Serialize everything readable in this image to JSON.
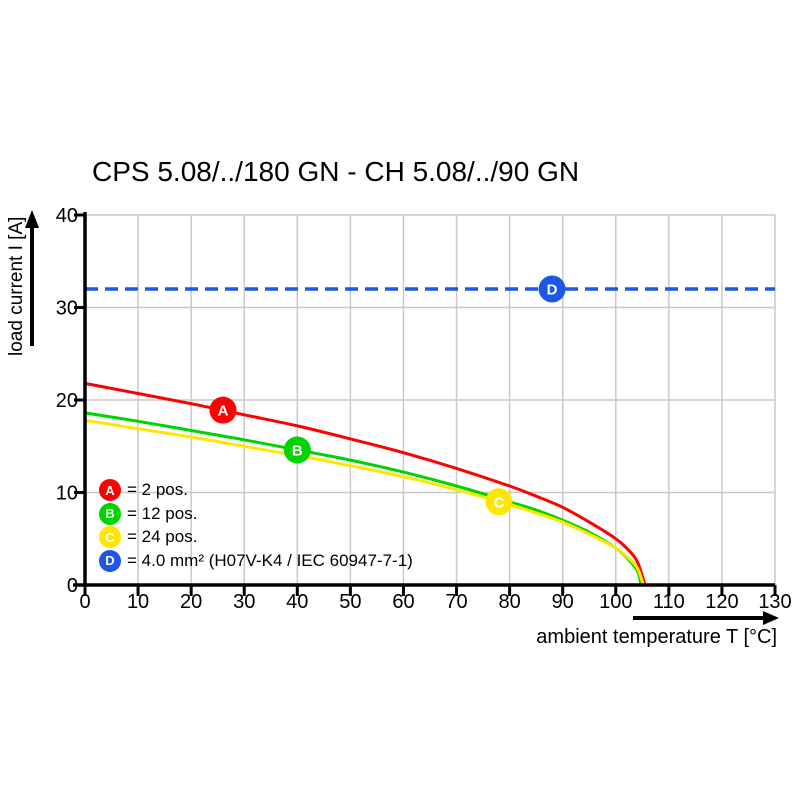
{
  "chart_data": {
    "type": "line",
    "title": "CPS 5.08/../180 GN - CH 5.08/../90 GN",
    "xlabel": "ambient temperature T [°C]",
    "ylabel": "load current I [A]",
    "xlim": [
      0,
      130
    ],
    "ylim": [
      0,
      40
    ],
    "x_ticks": [
      0,
      10,
      20,
      30,
      40,
      50,
      60,
      70,
      80,
      90,
      100,
      110,
      120,
      130
    ],
    "y_ticks": [
      0,
      10,
      20,
      30,
      40
    ],
    "grid": true,
    "colors": {
      "grid": "#c9c9c9",
      "axis": "#000000"
    },
    "series": [
      {
        "key": "A",
        "name": "A = 2 pos.",
        "color": "#ff0000",
        "style": "solid",
        "points": [
          [
            0,
            21.8
          ],
          [
            10,
            20.7
          ],
          [
            20,
            19.6
          ],
          [
            30,
            18.4
          ],
          [
            40,
            17.2
          ],
          [
            50,
            15.8
          ],
          [
            60,
            14.3
          ],
          [
            70,
            12.6
          ],
          [
            80,
            10.7
          ],
          [
            85,
            9.6
          ],
          [
            90,
            8.4
          ],
          [
            95,
            6.8
          ],
          [
            100,
            5.0
          ],
          [
            102,
            4.0
          ],
          [
            104,
            2.6
          ],
          [
            105.5,
            0
          ]
        ]
      },
      {
        "key": "B",
        "name": "B = 12 pos.",
        "color": "#00d400",
        "style": "solid",
        "points": [
          [
            0,
            18.6
          ],
          [
            10,
            17.7
          ],
          [
            20,
            16.7
          ],
          [
            30,
            15.7
          ],
          [
            40,
            14.6
          ],
          [
            50,
            13.5
          ],
          [
            60,
            12.2
          ],
          [
            70,
            10.7
          ],
          [
            80,
            9.0
          ],
          [
            85,
            8.1
          ],
          [
            90,
            7.0
          ],
          [
            95,
            5.7
          ],
          [
            100,
            4.0
          ],
          [
            102,
            3.0
          ],
          [
            104,
            1.6
          ],
          [
            104.8,
            0
          ]
        ]
      },
      {
        "key": "C",
        "name": "C = 24 pos.",
        "color": "#ffe600",
        "style": "solid",
        "points": [
          [
            0,
            17.8
          ],
          [
            10,
            16.9
          ],
          [
            20,
            16.0
          ],
          [
            30,
            15.0
          ],
          [
            40,
            14.0
          ],
          [
            50,
            12.9
          ],
          [
            60,
            11.7
          ],
          [
            70,
            10.3
          ],
          [
            80,
            8.7
          ],
          [
            85,
            7.8
          ],
          [
            90,
            6.8
          ],
          [
            95,
            5.5
          ],
          [
            100,
            4.0
          ],
          [
            102,
            3.1
          ],
          [
            104,
            1.9
          ],
          [
            105.2,
            0
          ]
        ]
      },
      {
        "key": "D",
        "name": "D = 4.0 mm² (H07V-K4 / IEC 60947-7-1)",
        "color": "#1c57e6",
        "style": "dashed",
        "points": [
          [
            0,
            32
          ],
          [
            130,
            32
          ]
        ]
      }
    ],
    "markers": [
      {
        "key": "A",
        "color": "#ff0000",
        "T": 26,
        "I": 18.9
      },
      {
        "key": "B",
        "color": "#00d400",
        "T": 40,
        "I": 14.6
      },
      {
        "key": "C",
        "color": "#ffe600",
        "T": 78,
        "I": 9.0
      },
      {
        "key": "D",
        "color": "#1c57e6",
        "T": 88,
        "I": 32.0
      }
    ]
  },
  "legend": {
    "items": [
      {
        "key": "A",
        "label": "= 2 pos.",
        "color": "#ff0000"
      },
      {
        "key": "B",
        "label": "= 12 pos.",
        "color": "#00d400"
      },
      {
        "key": "C",
        "label": "= 24 pos.",
        "color": "#ffe600"
      },
      {
        "key": "D",
        "label": "= 4.0 mm² (H07V-K4 / IEC 60947-7-1)",
        "color": "#1c57e6"
      }
    ]
  }
}
